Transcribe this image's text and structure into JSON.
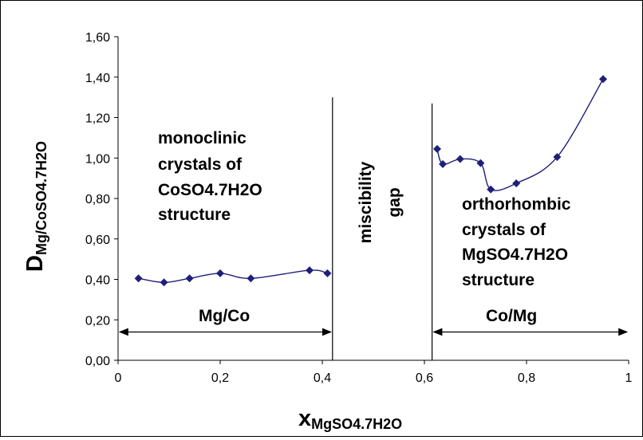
{
  "chart_data": {
    "type": "scatter",
    "xlabel": {
      "main": "x",
      "sub": "MgSO4.7H2O"
    },
    "ylabel": {
      "main": "D",
      "sub": "Mg/CoSO4.7H2O"
    },
    "xlim": [
      0,
      1
    ],
    "ylim": [
      0,
      1.6
    ],
    "x_ticks": [
      0,
      0.2,
      0.4,
      0.6,
      0.8,
      1
    ],
    "x_tick_labels": [
      "0",
      "0,2",
      "0,4",
      "0,6",
      "0,8",
      "1"
    ],
    "y_ticks": [
      0,
      0.2,
      0.4,
      0.6,
      0.8,
      1.0,
      1.2,
      1.4,
      1.6
    ],
    "y_tick_labels": [
      "0,00",
      "0,20",
      "0,40",
      "0,60",
      "0,80",
      "1,00",
      "1,20",
      "1,40",
      "1,60"
    ],
    "grid": false,
    "series": [
      {
        "color": "#1f1f7a",
        "marker": "diamond",
        "x": [
          0.04,
          0.09,
          0.14,
          0.2,
          0.26,
          0.375,
          0.41
        ],
        "y": [
          0.405,
          0.385,
          0.405,
          0.43,
          0.405,
          0.445,
          0.43
        ]
      },
      {
        "color": "#1f1f7a",
        "marker": "diamond",
        "x": [
          0.625,
          0.636,
          0.67,
          0.71,
          0.73,
          0.78,
          0.86,
          0.95
        ],
        "y": [
          1.045,
          0.97,
          0.995,
          0.975,
          0.845,
          0.875,
          1.005,
          1.39
        ]
      }
    ],
    "vertical_lines": [
      {
        "x": 0.42,
        "y_top": 1.3
      },
      {
        "x": 0.615,
        "y_top": 1.27
      }
    ],
    "ranges": [
      {
        "label": "Mg/Co",
        "x_start": 0,
        "x_end": 0.42,
        "y": 0.14
      },
      {
        "label": "Co/Mg",
        "x_start": 0.615,
        "x_end": 1.0,
        "y": 0.14
      }
    ],
    "annotations": [
      {
        "lines": [
          "monoclinic",
          "crystals of",
          "CoSO4.7H2O",
          "structure"
        ]
      },
      {
        "lines": [
          "miscibility",
          "gap"
        ]
      },
      {
        "lines": [
          "orthorhombic",
          "crystals of",
          "MgSO4.7H2O",
          "structure"
        ]
      }
    ]
  }
}
